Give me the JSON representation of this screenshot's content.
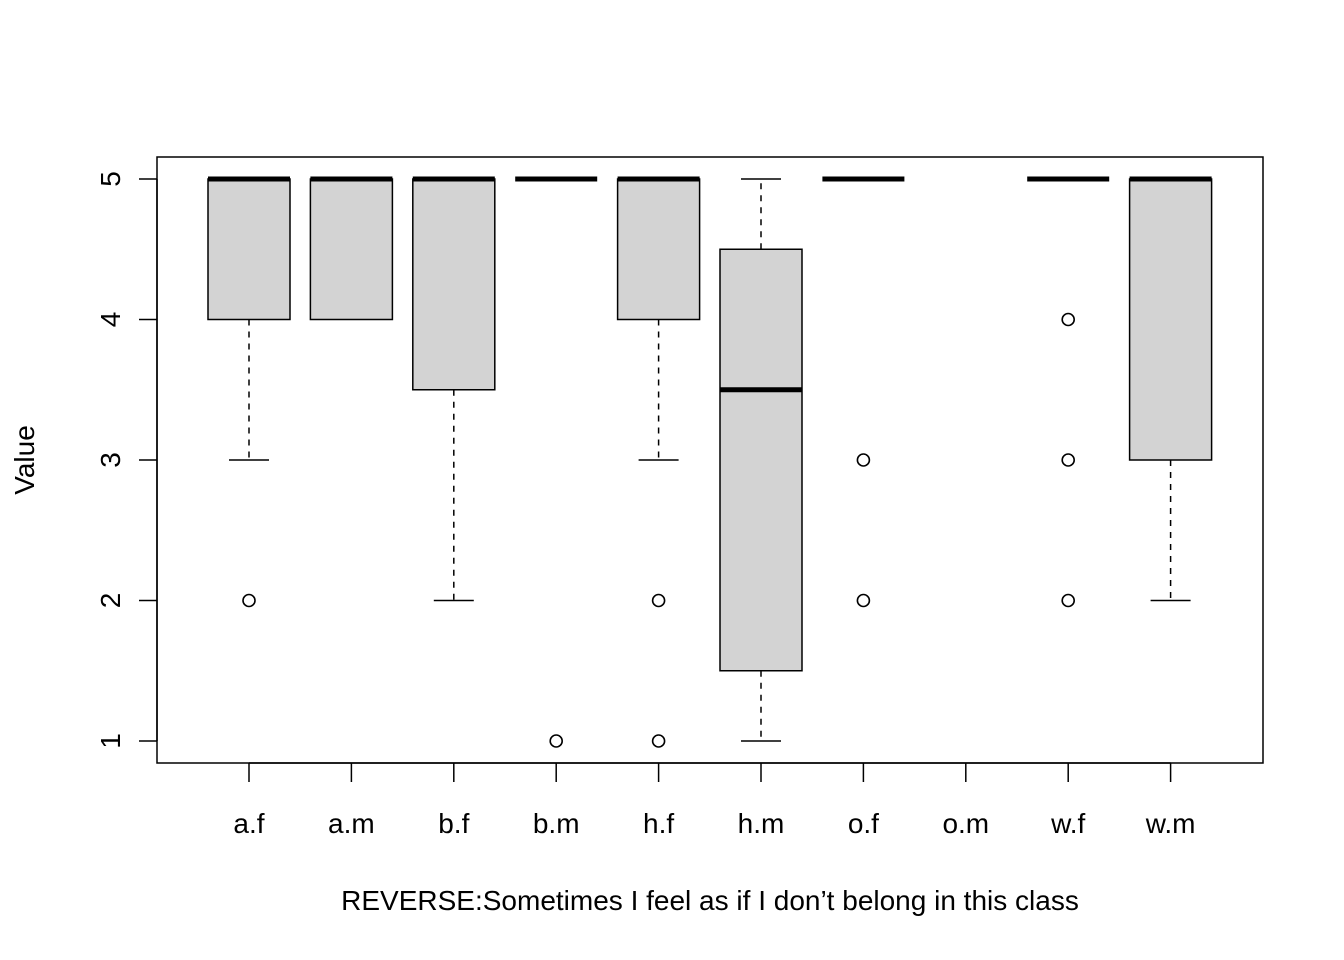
{
  "chart_data": {
    "type": "boxplot",
    "title": "",
    "xlabel": "REVERSE:Sometimes I feel as if I don’t belong in this class",
    "ylabel": "Value",
    "categories": [
      "a.f",
      "a.m",
      "b.f",
      "b.m",
      "h.f",
      "h.m",
      "o.f",
      "o.m",
      "w.f",
      "w.m"
    ],
    "ylim": [
      0.85,
      5.15
    ],
    "yticks": [
      1,
      2,
      3,
      4,
      5
    ],
    "grid": false,
    "box_fill": "#d3d3d3",
    "boxes": [
      {
        "name": "a.f",
        "whisker_low": 3,
        "q1": 4,
        "median": 5,
        "q3": 5,
        "whisker_high": 5,
        "outliers": [
          2
        ]
      },
      {
        "name": "a.m",
        "whisker_low": 4,
        "q1": 4,
        "median": 5,
        "q3": 5,
        "whisker_high": 5,
        "outliers": []
      },
      {
        "name": "b.f",
        "whisker_low": 2,
        "q1": 3.5,
        "median": 5,
        "q3": 5,
        "whisker_high": 5,
        "outliers": []
      },
      {
        "name": "b.m",
        "whisker_low": 5,
        "q1": 5,
        "median": 5,
        "q3": 5,
        "whisker_high": 5,
        "outliers": [
          1
        ]
      },
      {
        "name": "h.f",
        "whisker_low": 3,
        "q1": 4,
        "median": 5,
        "q3": 5,
        "whisker_high": 5,
        "outliers": [
          2,
          1
        ]
      },
      {
        "name": "h.m",
        "whisker_low": 1,
        "q1": 1.5,
        "median": 3.5,
        "q3": 4.5,
        "whisker_high": 5,
        "outliers": []
      },
      {
        "name": "o.f",
        "whisker_low": 5,
        "q1": 5,
        "median": 5,
        "q3": 5,
        "whisker_high": 5,
        "outliers": [
          3,
          2
        ]
      },
      {
        "name": "o.m",
        "empty": true
      },
      {
        "name": "w.f",
        "whisker_low": 5,
        "q1": 5,
        "median": 5,
        "q3": 5,
        "whisker_high": 5,
        "outliers": [
          4,
          3,
          2
        ]
      },
      {
        "name": "w.m",
        "whisker_low": 2,
        "q1": 3,
        "median": 5,
        "q3": 5,
        "whisker_high": 5,
        "outliers": []
      }
    ]
  }
}
